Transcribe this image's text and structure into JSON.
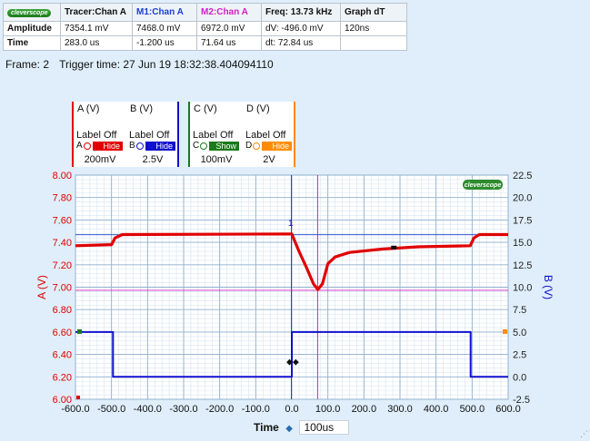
{
  "readout": {
    "header": [
      "Tracer:Chan A",
      "M1:Chan A",
      "M2:Chan A",
      "Freq: 13.73 kHz",
      "Graph dT"
    ],
    "header_colors": [
      "#111111",
      "#1a3fd0",
      "#d020c0",
      "#111111",
      "#111111"
    ],
    "logo": "cleverscope",
    "rows": [
      {
        "label": "Amplitude",
        "cells": [
          "7354.1 mV",
          "7468.0 mV",
          "6972.0 mV",
          "dV: -496.0 mV",
          "120ns"
        ]
      },
      {
        "label": "Time",
        "cells": [
          "283.0 us",
          "-1.200 us",
          "71.64 us",
          "dt:  72.84 us",
          ""
        ]
      }
    ]
  },
  "frame": {
    "frame": "Frame: 2",
    "trigger": "Trigger time: 27 Jun 19 18:32:38.404094110"
  },
  "channels": [
    {
      "name": "A (V)",
      "label": "Label Off",
      "letter": "A",
      "state": "Hide",
      "color": "#e00000",
      "scale": "200mV"
    },
    {
      "name": "B (V)",
      "label": "Label Off",
      "letter": "B",
      "state": "Hide",
      "color": "#1010d0",
      "scale": "2.5V"
    },
    {
      "name": "C (V)",
      "label": "Label Off",
      "letter": "C",
      "state": "Show",
      "color": "#1a7a1a",
      "scale": "100mV"
    },
    {
      "name": "D (V)",
      "label": "Label Off",
      "letter": "D",
      "state": "Hide",
      "color": "#ff8c00",
      "scale": "2V"
    }
  ],
  "timebase": {
    "label": "Time",
    "value": "100us"
  },
  "chart_data": {
    "type": "line",
    "logo": "cleverscope",
    "x_ticks": [
      "-600.0",
      "-500.0",
      "-400.0",
      "-300.0",
      "-200.0",
      "-100.0",
      "0.0",
      "100.0",
      "200.0",
      "300.0",
      "400.0",
      "500.0",
      "600.0"
    ],
    "xlim": [
      -600,
      600
    ],
    "y_left": {
      "label": "A (V)",
      "lim": [
        6.0,
        8.0
      ],
      "ticks": [
        "6.00",
        "6.20",
        "6.40",
        "6.60",
        "6.80",
        "7.00",
        "7.20",
        "7.40",
        "7.60",
        "7.80",
        "8.00"
      ],
      "color": "#e00000"
    },
    "y_right": {
      "label": "B (V)",
      "lim": [
        -2.5,
        22.5
      ],
      "ticks": [
        "-2.5",
        "0.0",
        "2.5",
        "5.0",
        "7.5",
        "10.0",
        "12.5",
        "15.0",
        "17.5",
        "20.0",
        "22.5"
      ],
      "color": "#1010d0"
    },
    "grid": true,
    "series": [
      {
        "name": "A",
        "axis": "left",
        "color": "#e00000",
        "x": [
          -600,
          -500,
          -490,
          -470,
          0,
          2,
          20,
          40,
          60,
          72,
          85,
          100,
          120,
          160,
          250,
          350,
          495,
          505,
          520,
          600
        ],
        "y": [
          7.37,
          7.38,
          7.44,
          7.47,
          7.475,
          7.46,
          7.32,
          7.18,
          7.03,
          6.98,
          7.03,
          7.21,
          7.27,
          7.31,
          7.34,
          7.36,
          7.37,
          7.44,
          7.47,
          7.47
        ]
      },
      {
        "name": "B",
        "axis": "right",
        "color": "#1010d0",
        "x": [
          -600,
          -496,
          -496,
          -10,
          0,
          0,
          496,
          496,
          600
        ],
        "y": [
          5.0,
          5.0,
          0.0,
          0.0,
          0.0,
          5.0,
          5.0,
          0.0,
          0.0
        ]
      }
    ],
    "markers": {
      "m1_time": -1.2,
      "m2_time": 71.64,
      "m1_value": 7.468,
      "m2_value": 6.972,
      "tracer_time": 283.0,
      "tracer_value": 7.3541,
      "trigger_label": "1"
    }
  }
}
